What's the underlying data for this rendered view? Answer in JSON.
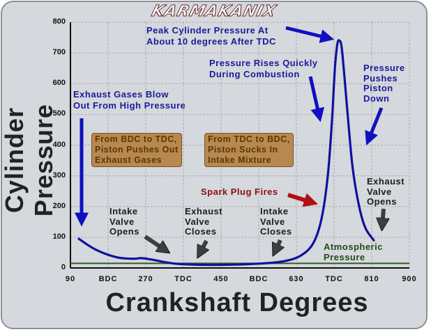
{
  "logo": "KARMAKANIX",
  "chart_data": {
    "type": "line",
    "title": "",
    "xlabel": "Crankshaft Degrees",
    "ylabel": "Cylinder Pressure",
    "xlim": [
      90,
      900
    ],
    "ylim": [
      0,
      800
    ],
    "grid": true,
    "y_ticks": [
      "0",
      "100",
      "200",
      "300",
      "400",
      "500",
      "600",
      "700",
      "800"
    ],
    "x_ticks": [
      "90",
      "BDC",
      "270",
      "TDC",
      "450",
      "BDC",
      "630",
      "TDC",
      "810",
      "900"
    ],
    "series": [
      {
        "name": "Cylinder Pressure",
        "color": "#1010a0",
        "x": [
          110,
          150,
          200,
          240,
          260,
          290,
          320,
          360,
          450,
          540,
          600,
          640,
          670,
          690,
          705,
          715,
          722,
          728,
          733,
          738,
          745,
          755,
          765,
          780,
          795,
          815
        ],
        "values": [
          95,
          60,
          35,
          30,
          32,
          26,
          18,
          12,
          10,
          14,
          22,
          40,
          80,
          160,
          300,
          480,
          650,
          730,
          740,
          720,
          620,
          460,
          320,
          200,
          130,
          90
        ]
      },
      {
        "name": "Atmospheric Pressure",
        "color": "#2e5e22",
        "x": [
          90,
          900
        ],
        "values": [
          15,
          15
        ]
      }
    ],
    "annotations": [
      {
        "text": "Peak Cylinder Pressure At About 10 degrees After TDC",
        "color": "#1a1a9a"
      },
      {
        "text": "Pressure Rises Quickly During Combustion",
        "color": "#1a1a9a"
      },
      {
        "text": "Pressure Pushes Piston Down",
        "color": "#1a1a9a"
      },
      {
        "text": "Exhaust Gases Blow Out From High Pressure",
        "color": "#1a1a9a"
      },
      {
        "text": "From BDC to TDC, Piston Pushes Out Exhaust Gases",
        "color": "#5b3508"
      },
      {
        "text": "From TDC to BDC, Piston Sucks In Intake Mixture",
        "color": "#5b3508"
      },
      {
        "text": "Spark Plug Fires",
        "color": "#8b1010"
      },
      {
        "text": "Intake Valve Opens",
        "color": "#1c1c1c"
      },
      {
        "text": "Exhaust Valve Closes",
        "color": "#1c1c1c"
      },
      {
        "text": "Intake Valve Closes",
        "color": "#1c1c1c"
      },
      {
        "text": "Exhaust Valve Opens",
        "color": "#1c1c1c"
      },
      {
        "text": "Atmospheric Pressure",
        "color": "#1e4d16"
      }
    ]
  },
  "labels": {
    "peak": [
      "Peak Cylinder Pressure At",
      "About 10 degrees After TDC"
    ],
    "rises": [
      "Pressure Rises Quickly",
      "During Combustion"
    ],
    "pushes": [
      "Pressure",
      "Pushes",
      "Piston",
      "Down"
    ],
    "exhaust_blow": [
      "Exhaust Gases Blow",
      "Out From High Pressure"
    ],
    "box1": [
      "From BDC to TDC,",
      "Piston Pushes Out",
      "Exhaust Gases"
    ],
    "box2": [
      "From TDC to BDC,",
      "Piston Sucks In",
      "Intake Mixture"
    ],
    "spark": "Spark Plug Fires",
    "ivo": [
      "Intake",
      "Valve",
      "Opens"
    ],
    "evc": [
      "Exhaust",
      "Valve",
      "Closes"
    ],
    "ivc": [
      "Intake",
      "Valve",
      "Closes"
    ],
    "evo": [
      "Exhaust",
      "Valve",
      "Opens"
    ],
    "atm": [
      "Atmospheric",
      "Pressure"
    ]
  }
}
